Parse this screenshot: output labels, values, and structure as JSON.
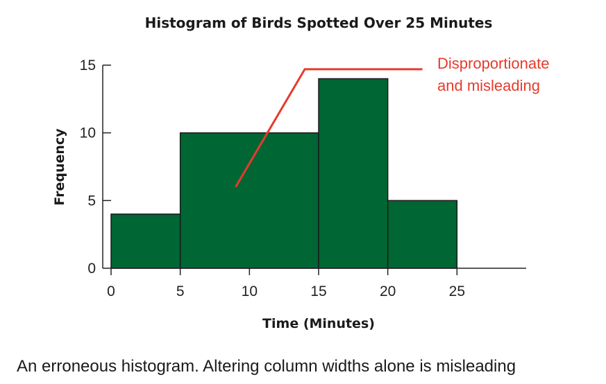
{
  "chart_data": {
    "type": "bar",
    "title": "Histogram of Birds Spotted Over 25 Minutes",
    "xlabel": "Time (Minutes)",
    "ylabel": "Frequency",
    "xlim": [
      0,
      30
    ],
    "ylim": [
      0,
      15
    ],
    "x_ticks": [
      0,
      5,
      10,
      15,
      20,
      25
    ],
    "y_ticks": [
      0,
      5,
      10,
      15
    ],
    "bins": [
      {
        "start": 0,
        "end": 5,
        "value": 4
      },
      {
        "start": 5,
        "end": 15,
        "value": 10
      },
      {
        "start": 15,
        "end": 20,
        "value": 14
      },
      {
        "start": 20,
        "end": 25,
        "value": 5
      }
    ],
    "bar_color": "#006633",
    "grid": false,
    "annotation": {
      "lines": [
        "Disproportionate",
        "and misleading"
      ],
      "color": "#e53b2c",
      "pointer_from": {
        "x": 9,
        "y": 6
      },
      "pointer_bend": {
        "x": 14,
        "y": 14.7
      },
      "pointer_to": {
        "x": 22.5,
        "y": 14.7
      }
    }
  },
  "caption": "An erroneous histogram. Altering column widths alone is misleading"
}
